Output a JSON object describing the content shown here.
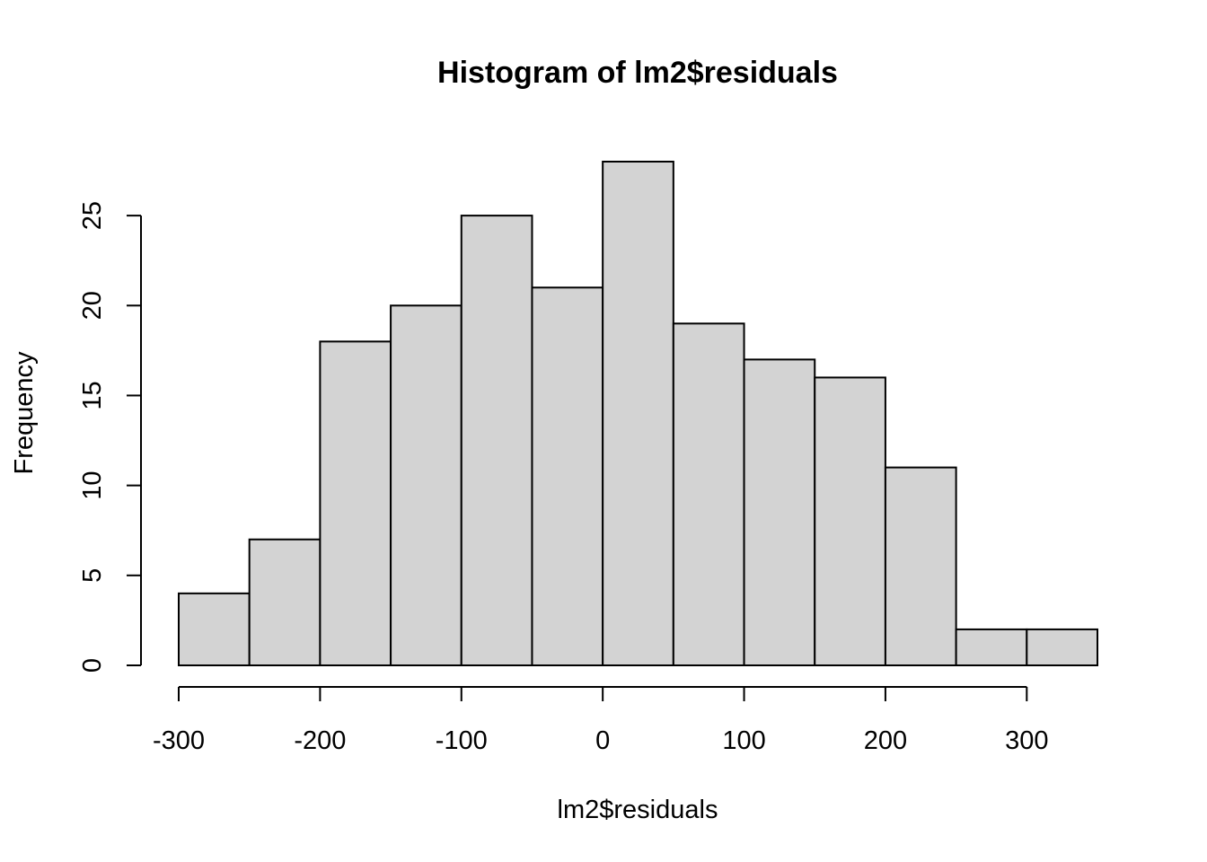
{
  "chart_data": {
    "type": "bar",
    "title": "Histogram of lm2$residuals",
    "xlabel": "lm2$residuals",
    "ylabel": "Frequency",
    "bins": [
      {
        "start": -300,
        "end": -250,
        "count": 4
      },
      {
        "start": -250,
        "end": -200,
        "count": 7
      },
      {
        "start": -200,
        "end": -150,
        "count": 18
      },
      {
        "start": -150,
        "end": -100,
        "count": 20
      },
      {
        "start": -100,
        "end": -50,
        "count": 25
      },
      {
        "start": -50,
        "end": 0,
        "count": 21
      },
      {
        "start": 0,
        "end": 50,
        "count": 28
      },
      {
        "start": 50,
        "end": 100,
        "count": 19
      },
      {
        "start": 100,
        "end": 150,
        "count": 17
      },
      {
        "start": 150,
        "end": 200,
        "count": 16
      },
      {
        "start": 200,
        "end": 250,
        "count": 11
      },
      {
        "start": 250,
        "end": 300,
        "count": 2
      },
      {
        "start": 300,
        "end": 350,
        "count": 2
      }
    ],
    "xlim": [
      -300,
      350
    ],
    "ylim": [
      0,
      28
    ],
    "x_ticks": [
      -300,
      -200,
      -100,
      0,
      100,
      200,
      300
    ],
    "x_tick_labels": [
      "-300",
      "-200",
      "-100",
      "0",
      "100",
      "200",
      "300"
    ],
    "y_ticks": [
      0,
      5,
      10,
      15,
      20,
      25
    ],
    "y_tick_labels": [
      "0",
      "5",
      "10",
      "15",
      "20",
      "25"
    ],
    "bar_fill": "#d3d3d3",
    "bar_stroke": "#000000",
    "grid": false,
    "legend": "none"
  }
}
